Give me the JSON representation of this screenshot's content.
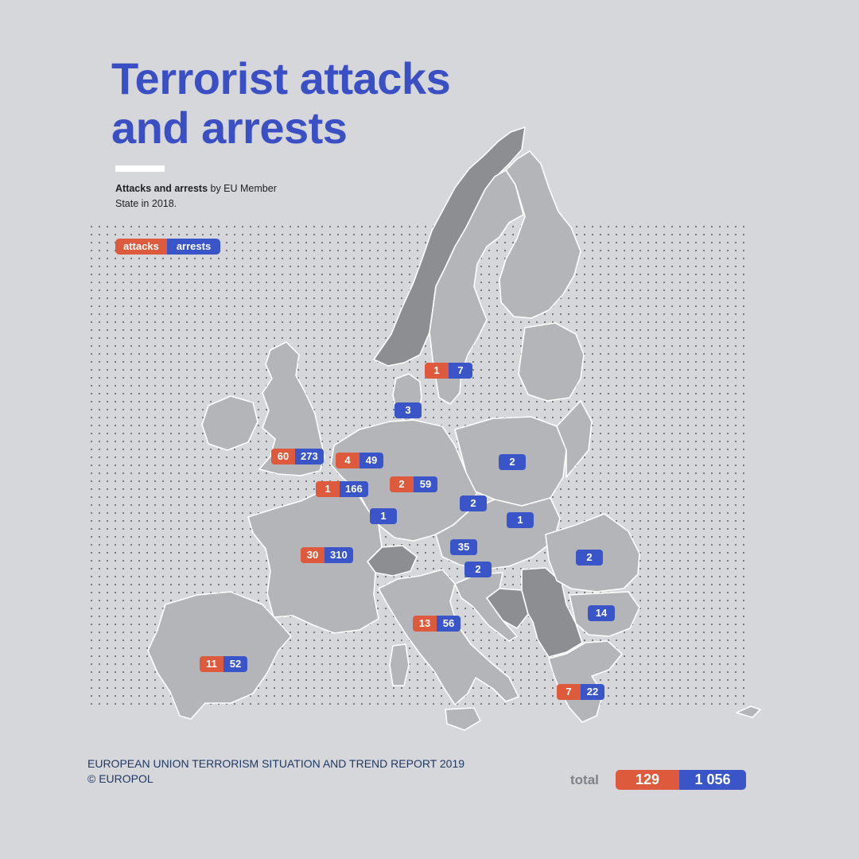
{
  "title": {
    "line1": "Terrorist attacks",
    "line2": "and arrests"
  },
  "subtitle": {
    "bold": "Attacks and arrests",
    "rest": " by EU Member State in 2018."
  },
  "legend": {
    "attacks": "attacks",
    "arrests": "arrests"
  },
  "colors": {
    "attacks": "#dd5a3c",
    "arrests": "#3a55c8",
    "title": "#3a4fc4",
    "background": "#d6d7db"
  },
  "markers": [
    {
      "country": "Sweden",
      "attacks": "1",
      "arrests": "7"
    },
    {
      "country": "Denmark",
      "attacks": "",
      "arrests": "3"
    },
    {
      "country": "United Kingdom",
      "attacks": "60",
      "arrests": "273"
    },
    {
      "country": "Netherlands",
      "attacks": "4",
      "arrests": "49"
    },
    {
      "country": "Belgium",
      "attacks": "1",
      "arrests": "166"
    },
    {
      "country": "Germany",
      "attacks": "2",
      "arrests": "59"
    },
    {
      "country": "Poland",
      "attacks": "",
      "arrests": "2"
    },
    {
      "country": "Czech Republic",
      "attacks": "",
      "arrests": "2"
    },
    {
      "country": "Luxembourg",
      "attacks": "",
      "arrests": "1"
    },
    {
      "country": "Slovakia",
      "attacks": "",
      "arrests": "1"
    },
    {
      "country": "France",
      "attacks": "30",
      "arrests": "310"
    },
    {
      "country": "Austria",
      "attacks": "",
      "arrests": "35"
    },
    {
      "country": "Romania",
      "attacks": "",
      "arrests": "2"
    },
    {
      "country": "Slovenia",
      "attacks": "",
      "arrests": "2"
    },
    {
      "country": "Bulgaria",
      "attacks": "",
      "arrests": "14"
    },
    {
      "country": "Italy",
      "attacks": "13",
      "arrests": "56"
    },
    {
      "country": "Spain",
      "attacks": "11",
      "arrests": "52"
    },
    {
      "country": "Greece",
      "attacks": "7",
      "arrests": "22"
    }
  ],
  "footer": {
    "line1": "EUROPEAN UNION TERRORISM SITUATION AND TREND REPORT 2019",
    "line2": "© EUROPOL"
  },
  "total": {
    "label": "total",
    "attacks": "129",
    "arrests": "1 056"
  }
}
